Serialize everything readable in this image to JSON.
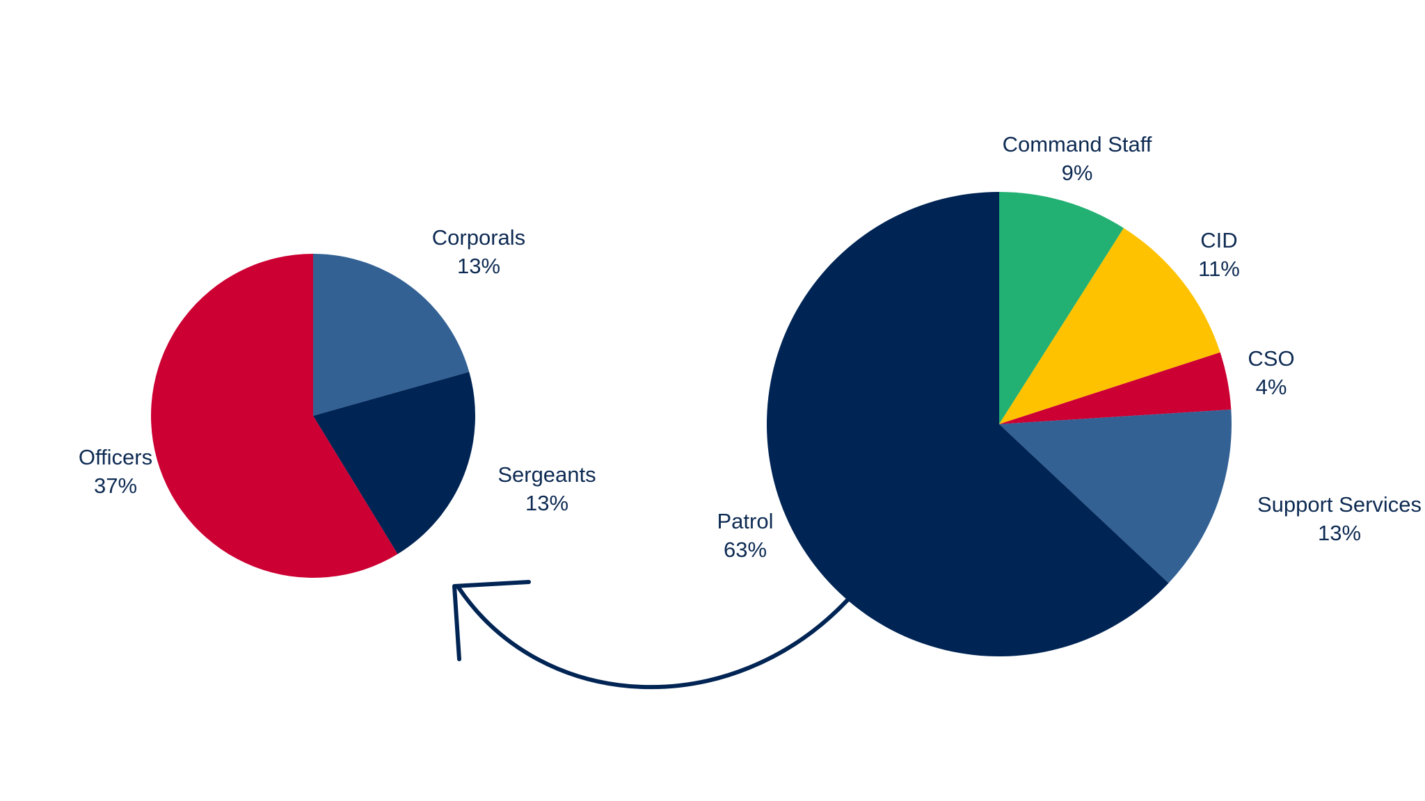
{
  "chart_data": [
    {
      "type": "pie",
      "title": "",
      "categories": [
        "Corporals",
        "Sergeants",
        "Officers"
      ],
      "values": [
        13,
        13,
        37
      ],
      "value_labels": [
        "13%",
        "13%",
        "37%"
      ],
      "colors": [
        "#336194",
        "#002454",
        "#cc0033"
      ],
      "start_angle_deg": 0,
      "direction": "clockwise",
      "legend": "none"
    },
    {
      "type": "pie",
      "title": "",
      "categories": [
        "Command Staff",
        "CID",
        "CSO",
        "Support Services",
        "Patrol"
      ],
      "values": [
        9,
        11,
        4,
        13,
        63
      ],
      "value_labels": [
        "9%",
        "11%",
        "4%",
        "13%",
        "63%"
      ],
      "colors": [
        "#22b073",
        "#ffc200",
        "#cc0033",
        "#336194",
        "#002454"
      ],
      "start_angle_deg": 0,
      "direction": "clockwise",
      "legend": "none"
    }
  ],
  "connector": {
    "from": "Patrol",
    "to": "breakdown-pie",
    "color": "#002454",
    "icon": "curved-arrow"
  }
}
